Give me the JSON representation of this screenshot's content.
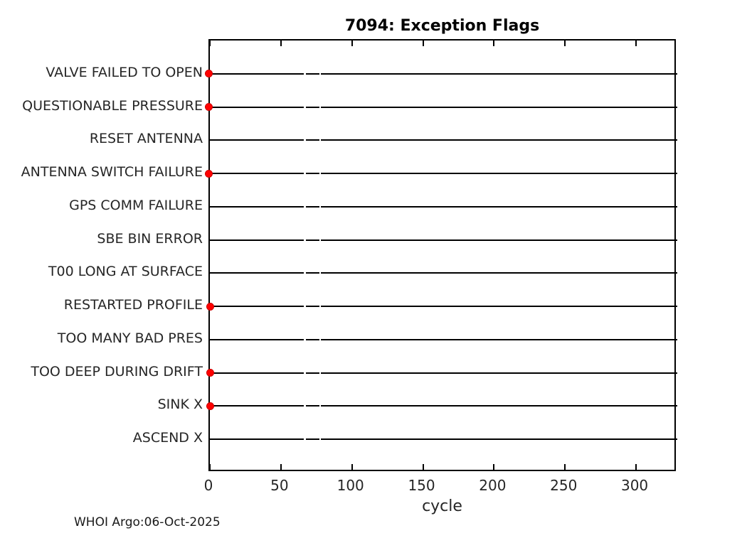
{
  "figure": {
    "background": "#ffffff",
    "footer": "WHOI Argo:06-Oct-2025"
  },
  "chart_data": {
    "type": "scatter",
    "title": "7094: Exception Flags",
    "xlabel": "cycle",
    "ylabel": "",
    "xlim": [
      0,
      329
    ],
    "xticks": [
      0,
      50,
      100,
      150,
      200,
      250,
      300
    ],
    "grid": false,
    "legend": "none",
    "categories": [
      "VALVE FAILED TO OPEN",
      "QUESTIONABLE PRESSURE",
      "RESET ANTENNA",
      "ANTENNA SWITCH FAILURE",
      "GPS COMM FAILURE",
      "SBE BIN ERROR",
      "T00 LONG AT SURFACE",
      "RESTARTED PROFILE",
      "TOO MANY BAD PRES",
      "TOO DEEP DURING DRIFT",
      "SINK X",
      "ASCEND X"
    ],
    "baseline_segments_cycles": [
      [
        0,
        66.2
      ],
      [
        67.5,
        77.0
      ],
      [
        78.3,
        329
      ]
    ],
    "series": [
      {
        "name": "exception occurrences",
        "marker": "filled-circle",
        "marker_color": "#ff0000",
        "marker_edge_color": "#cc0000",
        "points": [
          {
            "category": "VALVE FAILED TO OPEN",
            "cycle": 0
          },
          {
            "category": "QUESTIONABLE PRESSURE",
            "cycle": 0
          },
          {
            "category": "ANTENNA SWITCH FAILURE",
            "cycle": 0
          },
          {
            "category": "RESTARTED PROFILE",
            "cycle": 1
          },
          {
            "category": "TOO DEEP DURING DRIFT",
            "cycle": 1
          },
          {
            "category": "SINK X",
            "cycle": 1
          }
        ]
      }
    ],
    "line_color": "#000000",
    "text_color": "#262626"
  }
}
